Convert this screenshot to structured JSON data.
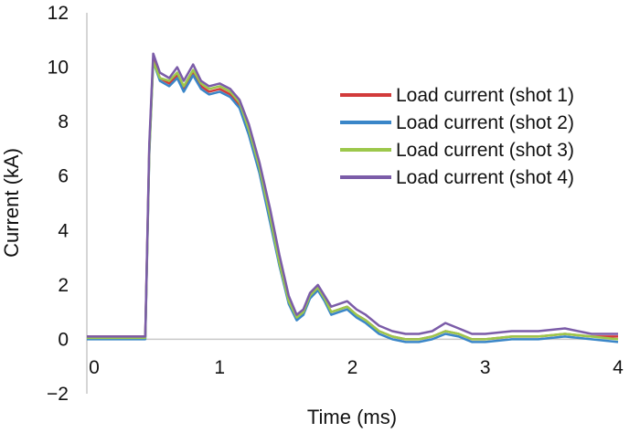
{
  "chart_data": {
    "type": "line",
    "title": "",
    "xlabel": "Time (ms)",
    "ylabel": "Current (kA)",
    "xlim": [
      0,
      4
    ],
    "ylim": [
      -2,
      12
    ],
    "x_ticks": [
      "0",
      "1",
      "2",
      "3",
      "4"
    ],
    "y_ticks": [
      "12",
      "10",
      "8",
      "6",
      "4",
      "2",
      "0",
      "−2"
    ],
    "grid": false,
    "legend_position": "right",
    "series": [
      {
        "name": "Load current (shot 1)",
        "color": "#d23b3b",
        "x": [
          0,
          0.44,
          0.47,
          0.5,
          0.55,
          0.62,
          0.68,
          0.73,
          0.8,
          0.86,
          0.92,
          1.0,
          1.08,
          1.15,
          1.22,
          1.3,
          1.38,
          1.45,
          1.52,
          1.58,
          1.63,
          1.68,
          1.74,
          1.79,
          1.84,
          1.9,
          1.96,
          2.03,
          2.1,
          2.2,
          2.3,
          2.4,
          2.5,
          2.6,
          2.7,
          2.8,
          2.9,
          3.0,
          3.2,
          3.4,
          3.6,
          3.8,
          4.0
        ],
        "y": [
          0.1,
          0.1,
          7.0,
          10.3,
          9.6,
          9.4,
          9.7,
          9.2,
          9.8,
          9.3,
          9.1,
          9.2,
          9.0,
          8.6,
          7.6,
          6.2,
          4.5,
          2.9,
          1.5,
          0.8,
          1.0,
          1.6,
          1.9,
          1.5,
          1.0,
          1.1,
          1.2,
          0.9,
          0.7,
          0.3,
          0.1,
          0.0,
          0.0,
          0.1,
          0.3,
          0.2,
          0.0,
          0.0,
          0.1,
          0.1,
          0.2,
          0.1,
          0.1
        ]
      },
      {
        "name": "Load current (shot 2)",
        "color": "#3a86c8",
        "x": [
          0,
          0.44,
          0.47,
          0.5,
          0.55,
          0.62,
          0.68,
          0.73,
          0.8,
          0.86,
          0.92,
          1.0,
          1.08,
          1.15,
          1.22,
          1.3,
          1.38,
          1.45,
          1.52,
          1.58,
          1.63,
          1.68,
          1.74,
          1.79,
          1.84,
          1.9,
          1.96,
          2.03,
          2.1,
          2.2,
          2.3,
          2.4,
          2.5,
          2.6,
          2.7,
          2.8,
          2.9,
          3.0,
          3.2,
          3.4,
          3.6,
          3.8,
          4.0
        ],
        "y": [
          0.0,
          0.0,
          6.8,
          10.2,
          9.5,
          9.3,
          9.6,
          9.1,
          9.7,
          9.2,
          9.0,
          9.1,
          8.9,
          8.5,
          7.5,
          6.1,
          4.3,
          2.7,
          1.3,
          0.7,
          0.9,
          1.5,
          1.8,
          1.4,
          0.9,
          1.0,
          1.1,
          0.8,
          0.6,
          0.2,
          0.0,
          -0.1,
          -0.1,
          0.0,
          0.2,
          0.1,
          -0.1,
          -0.1,
          0.0,
          0.0,
          0.1,
          0.0,
          -0.1
        ]
      },
      {
        "name": "Load current (shot 3)",
        "color": "#9cc84b",
        "x": [
          0,
          0.44,
          0.47,
          0.5,
          0.55,
          0.62,
          0.68,
          0.73,
          0.8,
          0.86,
          0.92,
          1.0,
          1.08,
          1.15,
          1.22,
          1.3,
          1.38,
          1.45,
          1.52,
          1.58,
          1.63,
          1.68,
          1.74,
          1.79,
          1.84,
          1.9,
          1.96,
          2.03,
          2.1,
          2.2,
          2.3,
          2.4,
          2.5,
          2.6,
          2.7,
          2.8,
          2.9,
          3.0,
          3.2,
          3.4,
          3.6,
          3.8,
          4.0
        ],
        "y": [
          0.05,
          0.05,
          6.9,
          10.2,
          9.6,
          9.5,
          9.8,
          9.3,
          9.9,
          9.4,
          9.2,
          9.3,
          9.1,
          8.7,
          7.7,
          6.3,
          4.5,
          2.8,
          1.4,
          0.8,
          1.0,
          1.6,
          1.9,
          1.5,
          1.0,
          1.1,
          1.2,
          0.9,
          0.7,
          0.3,
          0.1,
          0.0,
          0.0,
          0.1,
          0.3,
          0.2,
          0.0,
          0.0,
          0.1,
          0.1,
          0.2,
          0.1,
          0.0
        ]
      },
      {
        "name": "Load current (shot 4)",
        "color": "#7b5ca8",
        "x": [
          0,
          0.44,
          0.47,
          0.5,
          0.55,
          0.62,
          0.68,
          0.73,
          0.8,
          0.86,
          0.92,
          1.0,
          1.08,
          1.15,
          1.22,
          1.3,
          1.38,
          1.45,
          1.52,
          1.58,
          1.63,
          1.68,
          1.74,
          1.79,
          1.84,
          1.9,
          1.96,
          2.03,
          2.1,
          2.2,
          2.3,
          2.4,
          2.5,
          2.6,
          2.7,
          2.8,
          2.9,
          3.0,
          3.2,
          3.4,
          3.6,
          3.8,
          4.0
        ],
        "y": [
          0.1,
          0.1,
          7.2,
          10.5,
          9.8,
          9.6,
          10.0,
          9.5,
          10.1,
          9.5,
          9.3,
          9.4,
          9.2,
          8.8,
          7.9,
          6.5,
          4.8,
          3.1,
          1.6,
          0.9,
          1.1,
          1.7,
          2.0,
          1.6,
          1.2,
          1.3,
          1.4,
          1.1,
          0.9,
          0.5,
          0.3,
          0.2,
          0.2,
          0.3,
          0.6,
          0.4,
          0.2,
          0.2,
          0.3,
          0.3,
          0.4,
          0.2,
          0.2
        ]
      }
    ]
  }
}
